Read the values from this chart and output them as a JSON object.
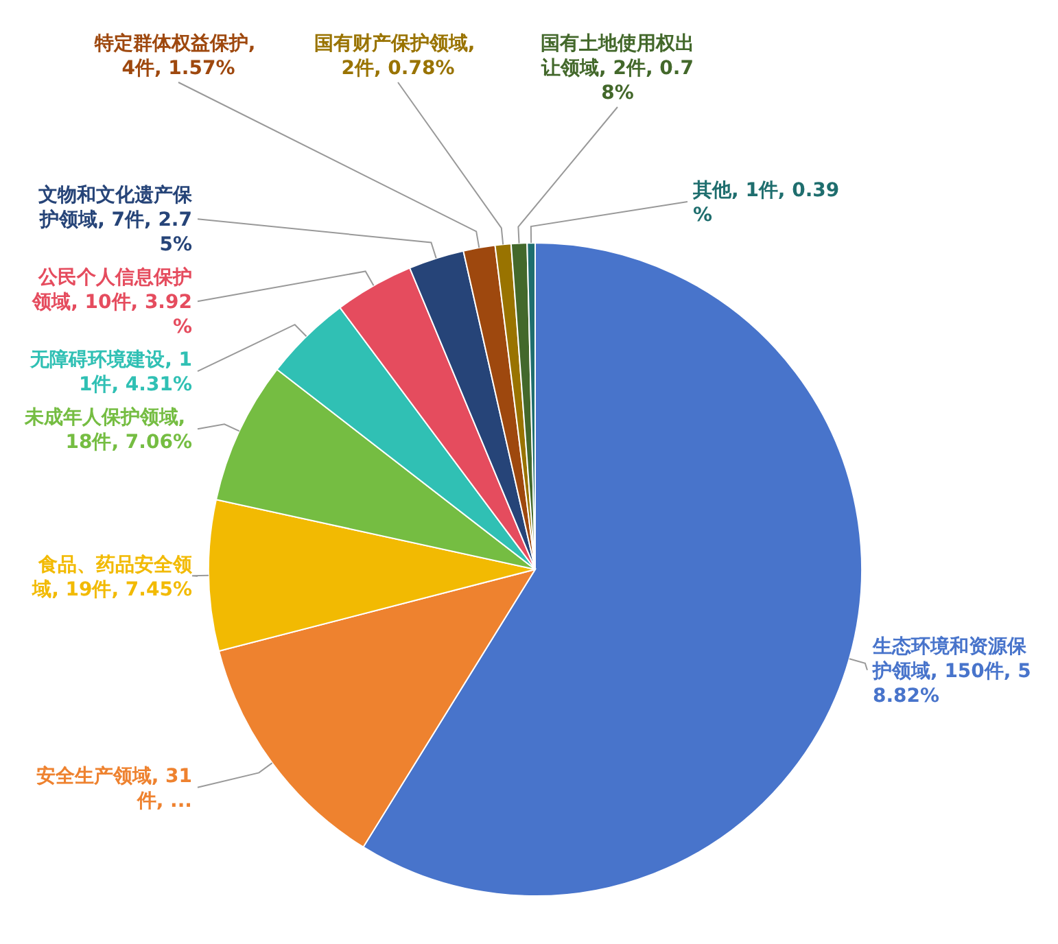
{
  "chart_data": {
    "type": "pie",
    "categories": [
      "生态环境和资源保护领域, 150件, 58.82%",
      "安全生产领域, 31件, ...",
      "食品、药品安全领域, 19件, 7.45%",
      "未成年人保护领域, 18件, 7.06%",
      "无障碍环境建设, 11件, 4.31%",
      "公民个人信息保护领域, 10件, 3.92%",
      "文物和文化遗产保护领域, 7件, 2.75%",
      "特定群体权益保护, 4件, 1.57%",
      "国有财产保护领域, 2件, 0.78%",
      "国有土地使用权出让领域, 2件, 0.78%",
      "其他, 1件, 0.39%"
    ],
    "values": [
      150,
      31,
      19,
      18,
      11,
      10,
      7,
      4,
      2,
      2,
      1
    ],
    "colors": [
      "#4874cb",
      "#ee822f",
      "#f2ba02",
      "#75bd42",
      "#30c0b4",
      "#e54c5e",
      "#264478",
      "#9e480e",
      "#997300",
      "#43682b",
      "#1f6e6e"
    ]
  }
}
